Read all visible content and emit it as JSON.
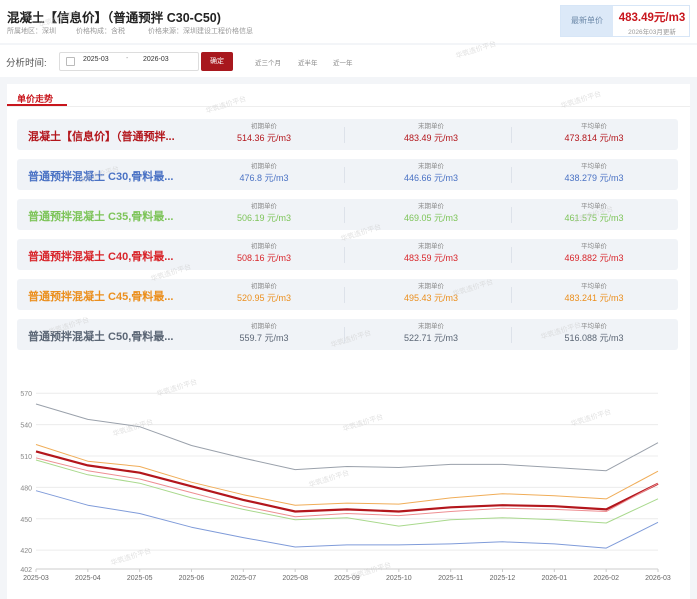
{
  "header": {
    "title": "混凝土【信息价】（普通预拌 C30-C50)",
    "region": "所属地区：深圳",
    "composition": "价格构成：含税",
    "source": "价格来源：深圳建设工程价格信息",
    "latest_label": "最新单价",
    "latest_value": "483.49元/m3",
    "latest_date": "2026年03月更新"
  },
  "filter": {
    "label": "分析时间:",
    "start": "2025-03",
    "end": "2026-03",
    "separator": "-",
    "confirm": "确定",
    "quick_options": [
      "近三个月",
      "近半年",
      "近一年"
    ]
  },
  "tab": {
    "label": "单价走势"
  },
  "stat_labels": {
    "start": "初期单价",
    "end": "末期单价",
    "avg": "平均单价"
  },
  "rows": [
    {
      "name": "混凝土【信息价】（普通预拌...",
      "start": "514.36 元/m3",
      "end": "483.49 元/m3",
      "avg": "473.814 元/m3",
      "color": "#b3161c"
    },
    {
      "name": "普通预拌混凝土 C30,骨料最...",
      "start": "476.8 元/m3",
      "end": "446.66 元/m3",
      "avg": "438.279 元/m3",
      "color": "#4a72c4"
    },
    {
      "name": "普通预拌混凝土 C35,骨料最...",
      "start": "506.19 元/m3",
      "end": "469.05 元/m3",
      "avg": "461.575 元/m3",
      "color": "#7dc459"
    },
    {
      "name": "普通预拌混凝土 C40,骨料最...",
      "start": "508.16 元/m3",
      "end": "483.59 元/m3",
      "avg": "469.882 元/m3",
      "color": "#d8262b"
    },
    {
      "name": "普通预拌混凝土 C45,骨料最...",
      "start": "520.95 元/m3",
      "end": "495.43 元/m3",
      "avg": "483.241 元/m3",
      "color": "#eb8f1e"
    },
    {
      "name": "普通预拌混凝土 C50,骨料最...",
      "start": "559.7 元/m3",
      "end": "522.71 元/m3",
      "avg": "516.088 元/m3",
      "color": "#5b6675"
    }
  ],
  "watermark": "华筑造价平台",
  "chart_data": {
    "type": "line",
    "x": [
      "2025-03",
      "2025-04",
      "2025-05",
      "2025-06",
      "2025-07",
      "2025-08",
      "2025-09",
      "2025-10",
      "2025-11",
      "2025-12",
      "2026-01",
      "2026-02",
      "2026-03"
    ],
    "yticks": [
      402,
      420,
      450,
      480,
      510,
      540,
      570
    ],
    "ylim": [
      402,
      575
    ],
    "grid": true,
    "series": [
      {
        "values": [
          559.7,
          545,
          538,
          520,
          508,
          497,
          500,
          499,
          502,
          502,
          499,
          496,
          522.71
        ],
        "color": "#9aa1ab",
        "width": 1
      },
      {
        "values": [
          520.95,
          505,
          500,
          485,
          473,
          463,
          465,
          464,
          470,
          474,
          472,
          469,
          495.43
        ],
        "color": "#f0ad58",
        "width": 1
      },
      {
        "values": [
          514.36,
          501,
          494,
          481,
          468,
          457,
          459,
          457,
          461,
          463,
          462,
          459,
          483.49
        ],
        "color": "#b3161c",
        "width": 2.2
      },
      {
        "values": [
          508.16,
          496,
          488,
          475,
          462,
          452,
          455,
          453,
          457,
          460,
          459,
          457,
          483.59
        ],
        "color": "#ee8e92",
        "width": 1
      },
      {
        "values": [
          506.19,
          492,
          484,
          470,
          459,
          449,
          451,
          443,
          449,
          451,
          449,
          446,
          469.05
        ],
        "color": "#a9d98d",
        "width": 1
      },
      {
        "values": [
          476.8,
          463,
          455,
          442,
          432,
          423,
          425,
          425,
          426,
          428,
          426,
          422,
          446.66
        ],
        "color": "#7f9bd9",
        "width": 1
      }
    ]
  }
}
